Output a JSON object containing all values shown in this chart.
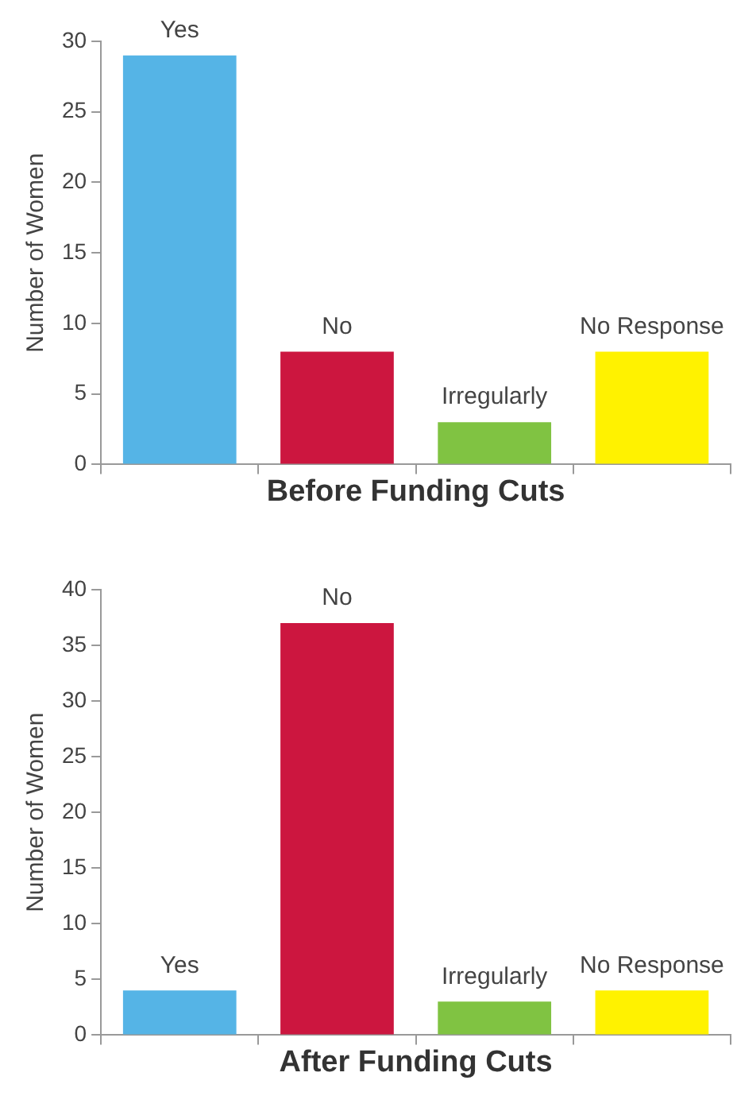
{
  "chart_data": [
    {
      "type": "bar",
      "xlabel": "Before Funding Cuts",
      "ylabel": "Number of Women",
      "categories": [
        "Yes",
        "No",
        "Irregularly",
        "No Response"
      ],
      "colors": [
        "#55b4e6",
        "#cc163f",
        "#80c342",
        "#fff200"
      ],
      "values": [
        29,
        8,
        3,
        8
      ],
      "ylim": [
        0,
        30
      ],
      "yticks": [
        0,
        5,
        10,
        15,
        20,
        25,
        30
      ],
      "grid": false,
      "legend": false
    },
    {
      "type": "bar",
      "xlabel": "After Funding Cuts",
      "ylabel": "Number of Women",
      "categories": [
        "Yes",
        "No",
        "Irregularly",
        "No Response"
      ],
      "colors": [
        "#55b4e6",
        "#cc163f",
        "#80c342",
        "#fff200"
      ],
      "values": [
        4,
        37,
        3,
        4
      ],
      "ylim": [
        0,
        40
      ],
      "yticks": [
        0,
        5,
        10,
        15,
        20,
        25,
        30,
        35,
        40
      ],
      "grid": false,
      "legend": false
    }
  ]
}
